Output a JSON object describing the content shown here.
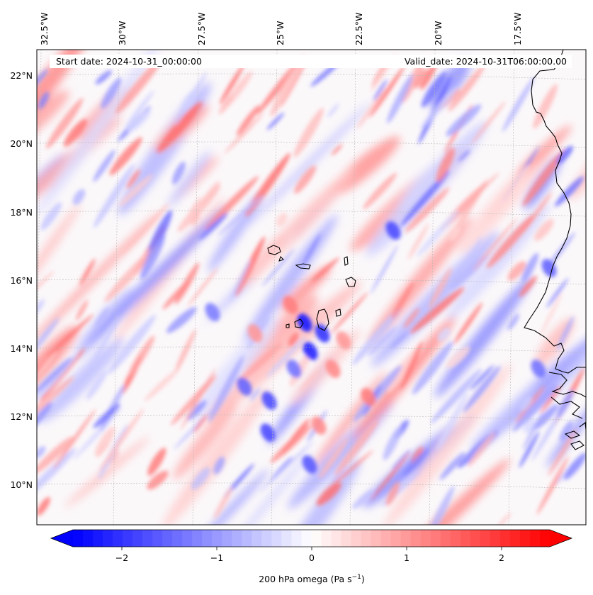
{
  "map": {
    "start_date_label": "Start date: 2024-10-31_00:00:00",
    "valid_date_label": "Valid_date: 2024-10-31T06:00:00.00",
    "lon_labels": [
      "32.5°W",
      "30°W",
      "27.5°W",
      "25°W",
      "22.5°W",
      "20°W",
      "17.5°W"
    ],
    "lat_labels": [
      "22°N",
      "20°N",
      "18°N",
      "16°N",
      "14°N",
      "12°N",
      "10°N"
    ],
    "extent": {
      "lon_min": -33,
      "lon_max": -15.7,
      "lat_min": 8.8,
      "lat_max": 22.8
    },
    "field": "200 hPa vertical velocity (omega)",
    "gridlines": true
  },
  "colorbar": {
    "label": "200 hPa omega (Pa s",
    "label_exp": "−1",
    "label_close": ")",
    "tick_labels": [
      "−2",
      "−1",
      "0",
      "1",
      "2"
    ],
    "ticks": [
      -2,
      -1,
      0,
      1,
      2
    ],
    "range": [
      -2.5,
      2.5
    ],
    "extend": "both",
    "cmap": "bwr",
    "colors": {
      "min": "#0000ff",
      "mid": "#ffffff",
      "max": "#ff0000"
    }
  }
}
